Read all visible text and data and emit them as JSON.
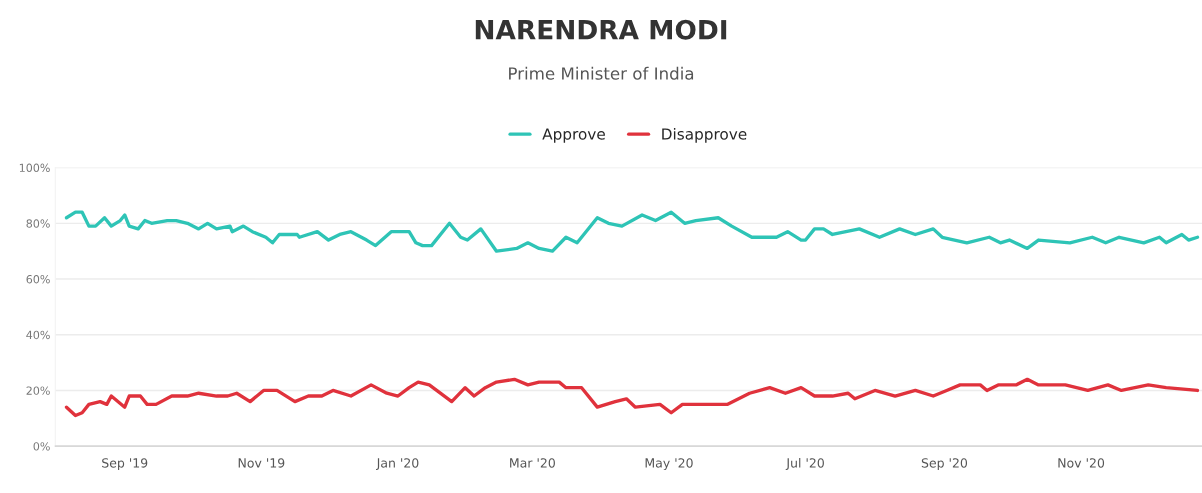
{
  "chart_data": {
    "type": "line",
    "title": "NARENDRA MODI",
    "subtitle": "Prime Minister of India",
    "xlim": [
      "2019-08-01",
      "2020-12-25"
    ],
    "xticks": [
      {
        "value": "2019-09-01",
        "label": "Sep '19"
      },
      {
        "value": "2019-11-01",
        "label": "Nov '19"
      },
      {
        "value": "2020-01-01",
        "label": "Jan '20"
      },
      {
        "value": "2020-03-01",
        "label": "Mar '20"
      },
      {
        "value": "2020-05-01",
        "label": "May '20"
      },
      {
        "value": "2020-07-01",
        "label": "Jul '20"
      },
      {
        "value": "2020-09-01",
        "label": "Sep '20"
      },
      {
        "value": "2020-11-01",
        "label": "Nov '20"
      }
    ],
    "ylim": [
      0,
      100
    ],
    "yticks": [
      {
        "value": 0,
        "label": "0%"
      },
      {
        "value": 20,
        "label": "20%"
      },
      {
        "value": 40,
        "label": "40%"
      },
      {
        "value": 60,
        "label": "60%"
      },
      {
        "value": 80,
        "label": "80%"
      },
      {
        "value": 100,
        "label": "100%"
      }
    ],
    "grid": "y",
    "legend": "top",
    "marker": "none",
    "line_style": "solid",
    "series": [
      {
        "name": "Approve",
        "color": "#2ec4b6",
        "x": [
          "2019-08-06",
          "2019-08-10",
          "2019-08-13",
          "2019-08-16",
          "2019-08-19",
          "2019-08-23",
          "2019-08-26",
          "2019-08-30",
          "2019-09-01",
          "2019-09-03",
          "2019-09-07",
          "2019-09-10",
          "2019-09-13",
          "2019-09-20",
          "2019-09-24",
          "2019-09-29",
          "2019-10-04",
          "2019-10-08",
          "2019-10-12",
          "2019-10-18",
          "2019-10-19",
          "2019-10-24",
          "2019-10-28",
          "2019-11-03",
          "2019-11-06",
          "2019-11-09",
          "2019-11-17",
          "2019-11-18",
          "2019-11-26",
          "2019-12-01",
          "2019-12-06",
          "2019-12-11",
          "2019-12-18",
          "2019-12-22",
          "2019-12-29",
          "2020-01-01",
          "2020-01-06",
          "2020-01-09",
          "2020-01-12",
          "2020-01-16",
          "2020-01-24",
          "2020-01-29",
          "2020-02-01",
          "2020-02-07",
          "2020-02-14",
          "2020-02-23",
          "2020-02-28",
          "2020-03-04",
          "2020-03-10",
          "2020-03-16",
          "2020-03-21",
          "2020-03-30",
          "2020-04-04",
          "2020-04-10",
          "2020-04-19",
          "2020-04-25",
          "2020-05-02",
          "2020-05-08",
          "2020-05-13",
          "2020-05-23",
          "2020-05-29",
          "2020-06-07",
          "2020-06-18",
          "2020-06-23",
          "2020-06-29",
          "2020-07-01",
          "2020-07-05",
          "2020-07-09",
          "2020-07-13",
          "2020-07-25",
          "2020-08-03",
          "2020-08-12",
          "2020-08-19",
          "2020-08-27",
          "2020-08-31",
          "2020-09-11",
          "2020-09-21",
          "2020-09-26",
          "2020-09-30",
          "2020-10-08",
          "2020-10-13",
          "2020-10-27",
          "2020-11-06",
          "2020-11-12",
          "2020-11-18",
          "2020-11-29",
          "2020-12-06",
          "2020-12-09",
          "2020-12-16",
          "2020-12-19",
          "2020-12-23"
        ],
        "values": [
          82,
          84,
          84,
          79,
          79,
          82,
          79,
          81,
          83,
          79,
          78,
          81,
          80,
          81,
          81,
          80,
          78,
          80,
          78,
          79,
          77,
          79,
          77,
          75,
          73,
          76,
          76,
          75,
          77,
          74,
          76,
          77,
          74,
          72,
          77,
          77,
          77,
          73,
          72,
          72,
          80,
          75,
          74,
          78,
          70,
          71,
          73,
          71,
          70,
          75,
          73,
          82,
          80,
          79,
          83,
          81,
          84,
          80,
          81,
          82,
          79,
          75,
          75,
          77,
          74,
          74,
          78,
          78,
          76,
          78,
          75,
          78,
          76,
          78,
          75,
          73,
          75,
          73,
          74,
          71,
          74,
          73,
          75,
          73,
          75,
          73,
          75,
          73,
          76,
          74,
          75
        ]
      },
      {
        "name": "Disapprove",
        "color": "#e0323c",
        "x": [
          "2019-08-06",
          "2019-08-10",
          "2019-08-13",
          "2019-08-16",
          "2019-08-21",
          "2019-08-24",
          "2019-08-26",
          "2019-09-01",
          "2019-09-03",
          "2019-09-08",
          "2019-09-11",
          "2019-09-15",
          "2019-09-22",
          "2019-09-29",
          "2019-10-04",
          "2019-10-12",
          "2019-10-17",
          "2019-10-21",
          "2019-10-27",
          "2019-11-02",
          "2019-11-08",
          "2019-11-16",
          "2019-11-22",
          "2019-11-28",
          "2019-12-03",
          "2019-12-11",
          "2019-12-20",
          "2019-12-27",
          "2020-01-01",
          "2020-01-06",
          "2020-01-10",
          "2020-01-15",
          "2020-01-25",
          "2020-01-31",
          "2020-02-04",
          "2020-02-09",
          "2020-02-14",
          "2020-02-22",
          "2020-02-28",
          "2020-03-04",
          "2020-03-13",
          "2020-03-16",
          "2020-03-23",
          "2020-03-30",
          "2020-04-07",
          "2020-04-12",
          "2020-04-16",
          "2020-04-27",
          "2020-05-02",
          "2020-05-07",
          "2020-05-22",
          "2020-05-27",
          "2020-06-06",
          "2020-06-15",
          "2020-06-22",
          "2020-06-29",
          "2020-07-05",
          "2020-07-13",
          "2020-07-20",
          "2020-07-23",
          "2020-08-01",
          "2020-08-10",
          "2020-08-19",
          "2020-08-27",
          "2020-09-02",
          "2020-09-08",
          "2020-09-17",
          "2020-09-20",
          "2020-09-25",
          "2020-10-03",
          "2020-10-08",
          "2020-10-13",
          "2020-10-25",
          "2020-11-04",
          "2020-11-13",
          "2020-11-19",
          "2020-12-01",
          "2020-12-09",
          "2020-12-23"
        ],
        "values": [
          14,
          11,
          12,
          15,
          16,
          15,
          18,
          14,
          18,
          18,
          15,
          15,
          18,
          18,
          19,
          18,
          18,
          19,
          16,
          20,
          20,
          16,
          18,
          18,
          20,
          18,
          22,
          19,
          18,
          21,
          23,
          22,
          16,
          21,
          18,
          21,
          23,
          24,
          22,
          23,
          23,
          21,
          21,
          14,
          16,
          17,
          14,
          15,
          12,
          15,
          15,
          15,
          19,
          21,
          19,
          21,
          18,
          18,
          19,
          17,
          20,
          18,
          20,
          18,
          20,
          22,
          22,
          20,
          22,
          22,
          24,
          22,
          22,
          20,
          22,
          20,
          22,
          21,
          20
        ]
      }
    ]
  }
}
